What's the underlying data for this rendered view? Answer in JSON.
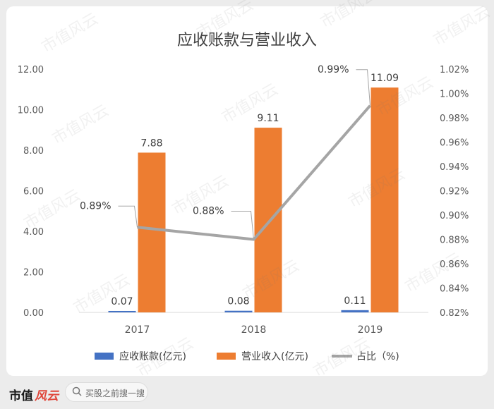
{
  "watermark": "市值风云",
  "footer": {
    "brand_main": "市值",
    "brand_accent": "风云",
    "search_text": "买股之前搜一搜"
  },
  "chart_data": {
    "type": "bar+line",
    "title": "应收账款与营业收入",
    "categories": [
      "2017",
      "2018",
      "2019"
    ],
    "series": [
      {
        "name": "应收账款(亿元)",
        "type": "bar",
        "axis": "left",
        "color": "#4472c4",
        "values": [
          0.07,
          0.08,
          0.11
        ],
        "labels": [
          "0.07",
          "0.08",
          "0.11"
        ]
      },
      {
        "name": "营业收入(亿元)",
        "type": "bar",
        "axis": "left",
        "color": "#ed7d31",
        "values": [
          7.88,
          9.11,
          11.09
        ],
        "labels": [
          "7.88",
          "9.11",
          "11.09"
        ]
      },
      {
        "name": "占比（%)",
        "type": "line",
        "axis": "right",
        "color": "#a5a5a5",
        "values": [
          0.89,
          0.88,
          0.99
        ],
        "labels": [
          "0.89%",
          "0.88%",
          "0.99%"
        ]
      }
    ],
    "y_left": {
      "min": 0,
      "max": 12,
      "step": 2,
      "ticks": [
        "0.00",
        "2.00",
        "4.00",
        "6.00",
        "8.00",
        "10.00",
        "12.00"
      ]
    },
    "y_right": {
      "min": 0.82,
      "max": 1.02,
      "step": 0.02,
      "ticks": [
        "0.82%",
        "0.84%",
        "0.86%",
        "0.88%",
        "0.90%",
        "0.92%",
        "0.94%",
        "0.96%",
        "0.98%",
        "1.00%",
        "1.02%"
      ]
    },
    "grid": false,
    "legend_position": "bottom"
  }
}
